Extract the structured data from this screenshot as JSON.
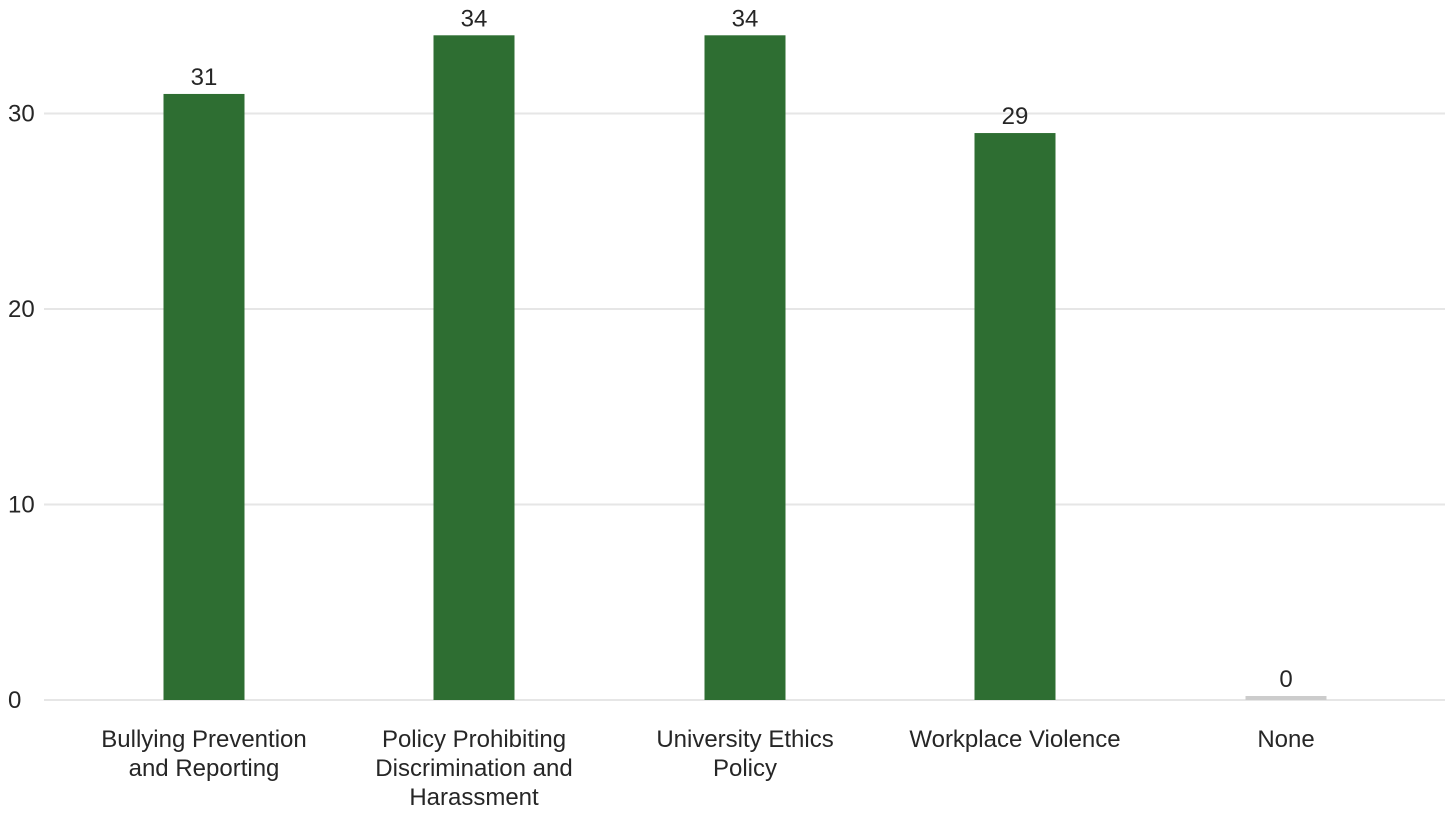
{
  "chart_data": {
    "type": "bar",
    "categories": [
      [
        "Bullying Prevention",
        "and Reporting"
      ],
      [
        "Policy Prohibiting",
        "Discrimination and",
        "Harassment"
      ],
      [
        "University Ethics",
        "Policy"
      ],
      [
        "Workplace Violence"
      ],
      [
        "None"
      ]
    ],
    "values": [
      31,
      34,
      34,
      29,
      0
    ],
    "bar_colors": [
      "#2e6e32",
      "#2e6e32",
      "#2e6e32",
      "#2e6e32",
      "#cccccc"
    ],
    "yticks": [
      0,
      10,
      20,
      30
    ],
    "ylim": [
      0,
      34
    ],
    "grid": true,
    "title": "",
    "xlabel": "",
    "ylabel": ""
  }
}
